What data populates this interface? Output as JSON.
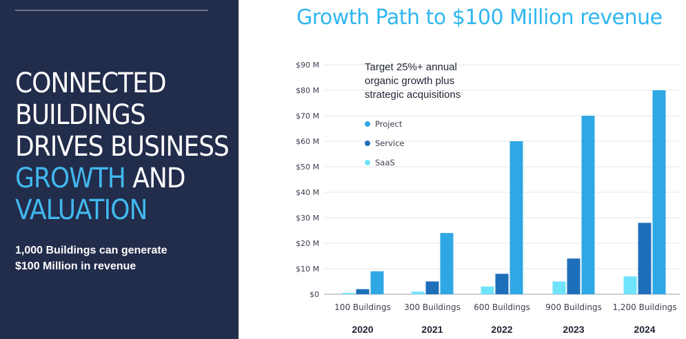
{
  "left_panel": {
    "headline_white": [
      "CONNECTED",
      "BUILDINGS",
      "DRIVES BUSINESS"
    ],
    "headline_accent_1": "GROWTH",
    "headline_and": " AND",
    "headline_accent_2": "VALUATION",
    "subtext_line1": "1,000 Buildings can generate",
    "subtext_line2": "$100 Million in revenue"
  },
  "colors": {
    "panel_bg": "#222c4b",
    "accent": "#41b8ee",
    "project": "#2fa7e4",
    "service": "#1e6fba",
    "saas": "#6fe3fb"
  },
  "chart_data": {
    "type": "bar",
    "title": "Growth Path to $100 Million revenue",
    "annotation": [
      "Target 25%+ annual",
      "organic growth plus",
      "strategic acquisitions"
    ],
    "categories": [
      "100 Buildings",
      "300 Buildings",
      "600 Buildings",
      "900 Buildings",
      "1,200 Buildings"
    ],
    "years": [
      "2020",
      "2021",
      "2022",
      "2023",
      "2024"
    ],
    "series": [
      {
        "name": "SaaS",
        "values": [
          0.5,
          1,
          3,
          5,
          7
        ]
      },
      {
        "name": "Service",
        "values": [
          2,
          5,
          8,
          14,
          28
        ]
      },
      {
        "name": "Project",
        "values": [
          9,
          24,
          60,
          70,
          80
        ]
      }
    ],
    "legend_order": [
      "Project",
      "Service",
      "SaaS"
    ],
    "ylim": [
      0,
      90
    ],
    "yticks": [
      0,
      10,
      20,
      30,
      40,
      50,
      60,
      70,
      80,
      90
    ],
    "ytick_labels": [
      "$0",
      "$10 M",
      "$20 M",
      "$30 M",
      "$40 M",
      "$50 M",
      "$60 M",
      "$70 M",
      "$80 M",
      "$90 M"
    ],
    "grid": true,
    "legend_position": "top-left"
  }
}
